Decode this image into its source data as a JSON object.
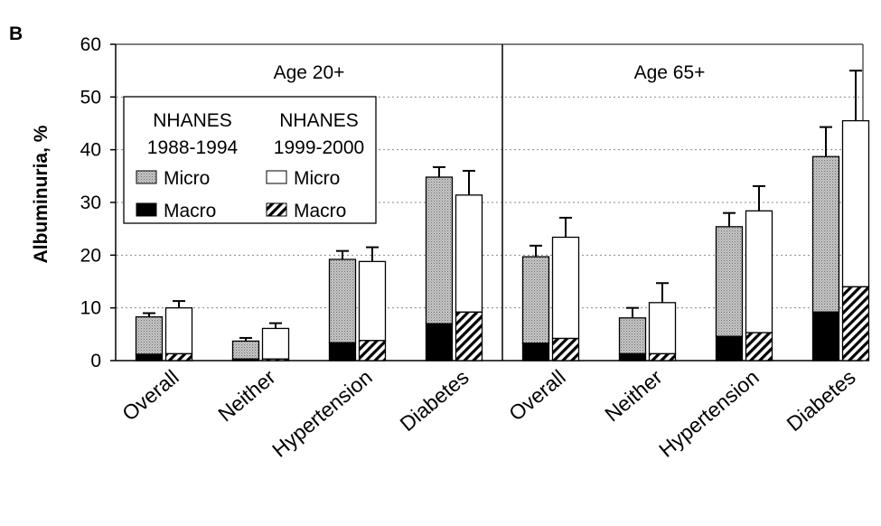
{
  "panel_label": "B",
  "chart_data": {
    "type": "bar",
    "stacked": true,
    "ylabel": "Albuminuria, %",
    "ylim": [
      0,
      60
    ],
    "yticks": [
      0,
      10,
      20,
      30,
      40,
      50,
      60
    ],
    "grid": "dashed horizontal gridlines",
    "categories": [
      "Overall",
      "Neither",
      "Hypertension",
      "Diabetes"
    ],
    "legend": {
      "placement": "upper-left of left panel",
      "headers": [
        {
          "line1": "NHANES",
          "line2": "1988-1994"
        },
        {
          "line1": "NHANES",
          "line2": "1999-2000"
        }
      ],
      "entries": [
        {
          "label": "Micro",
          "fill": "stipple-gray",
          "group": 0
        },
        {
          "label": "Macro",
          "fill": "black",
          "group": 0
        },
        {
          "label": "Micro",
          "fill": "white",
          "group": 1
        },
        {
          "label": "Macro",
          "fill": "hatch",
          "group": 1
        }
      ]
    },
    "panels": [
      {
        "title": "Age 20+",
        "groups": [
          {
            "category": "Overall",
            "bars": [
              {
                "series": "NHANES 1988-1994",
                "macro": 1.2,
                "total": 8.3,
                "error_top": 9.0
              },
              {
                "series": "NHANES 1999-2000",
                "macro": 1.3,
                "total": 10.0,
                "error_top": 11.3
              }
            ]
          },
          {
            "category": "Neither",
            "bars": [
              {
                "series": "NHANES 1988-1994",
                "macro": 0.3,
                "total": 3.7,
                "error_top": 4.3
              },
              {
                "series": "NHANES 1999-2000",
                "macro": 0.3,
                "total": 6.1,
                "error_top": 7.1
              }
            ]
          },
          {
            "category": "Hypertension",
            "bars": [
              {
                "series": "NHANES 1988-1994",
                "macro": 3.4,
                "total": 19.2,
                "error_top": 20.8
              },
              {
                "series": "NHANES 1999-2000",
                "macro": 3.8,
                "total": 18.8,
                "error_top": 21.5
              }
            ]
          },
          {
            "category": "Diabetes",
            "bars": [
              {
                "series": "NHANES 1988-1994",
                "macro": 7.0,
                "total": 34.8,
                "error_top": 36.7
              },
              {
                "series": "NHANES 1999-2000",
                "macro": 9.2,
                "total": 31.4,
                "error_top": 36.0
              }
            ]
          }
        ]
      },
      {
        "title": "Age 65+",
        "groups": [
          {
            "category": "Overall",
            "bars": [
              {
                "series": "NHANES 1988-1994",
                "macro": 3.3,
                "total": 19.7,
                "error_top": 21.8
              },
              {
                "series": "NHANES 1999-2000",
                "macro": 4.2,
                "total": 23.4,
                "error_top": 27.1
              }
            ]
          },
          {
            "category": "Neither",
            "bars": [
              {
                "series": "NHANES 1988-1994",
                "macro": 1.3,
                "total": 8.1,
                "error_top": 10.0
              },
              {
                "series": "NHANES 1999-2000",
                "macro": 1.3,
                "total": 11.0,
                "error_top": 14.7
              }
            ]
          },
          {
            "category": "Hypertension",
            "bars": [
              {
                "series": "NHANES 1988-1994",
                "macro": 4.6,
                "total": 25.4,
                "error_top": 28.0
              },
              {
                "series": "NHANES 1999-2000",
                "macro": 5.3,
                "total": 28.4,
                "error_top": 33.1
              }
            ]
          },
          {
            "category": "Diabetes",
            "bars": [
              {
                "series": "NHANES 1988-1994",
                "macro": 9.2,
                "total": 38.7,
                "error_top": 44.3
              },
              {
                "series": "NHANES 1999-2000",
                "macro": 14.0,
                "total": 45.5,
                "error_top": 55.0
              }
            ]
          }
        ]
      }
    ]
  }
}
